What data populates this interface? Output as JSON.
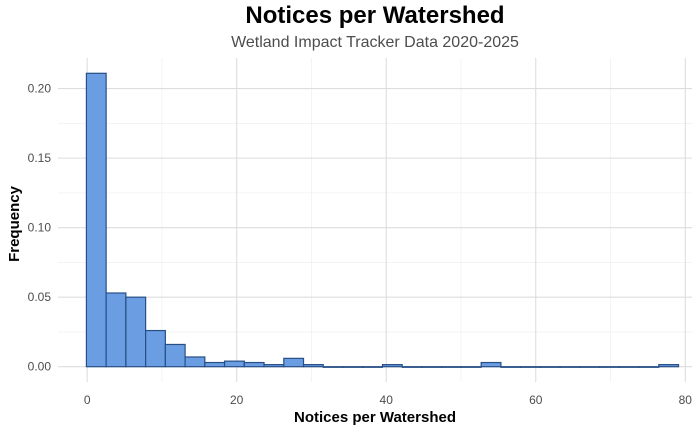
{
  "chart_data": {
    "type": "bar",
    "title": "Notices per Watershed",
    "subtitle": "Wetland Impact Tracker Data 2020-2025",
    "xlabel": "Notices per Watershed",
    "ylabel": "Frequency",
    "xlim": [
      -3.9,
      80.9
    ],
    "ylim": [
      -0.011,
      0.222
    ],
    "grid": true,
    "x_ticks": [
      0,
      20,
      40,
      60,
      80
    ],
    "y_ticks": [
      0.0,
      0.05,
      0.1,
      0.15,
      0.2
    ],
    "y_tick_labels": [
      "0.00",
      "0.05",
      "0.10",
      "0.15",
      "0.20"
    ],
    "bin_width": 2.64,
    "bins_start": [
      -0.1,
      2.54,
      5.18,
      7.82,
      10.46,
      13.1,
      15.74,
      18.38,
      21.02,
      23.66,
      26.3,
      28.94,
      31.58,
      34.22,
      36.86,
      39.5,
      42.14,
      44.78,
      47.42,
      50.06,
      52.7,
      55.34,
      57.98,
      60.62,
      63.26,
      65.9,
      68.54,
      71.18,
      73.82,
      76.46
    ],
    "values": [
      0.211,
      0.053,
      0.05,
      0.026,
      0.016,
      0.007,
      0.003,
      0.004,
      0.003,
      0.0015,
      0.006,
      0.0015,
      0.0,
      0.0,
      0.0,
      0.0015,
      0.0,
      0.0,
      0.0,
      0.0,
      0.003,
      0.0,
      0.0,
      0.0,
      0.0,
      0.0,
      0.0,
      0.0,
      0.0,
      0.0015
    ],
    "colors": {
      "fill": "#6b9de3",
      "stroke": "#274f86",
      "grid": "#dddddd"
    }
  }
}
